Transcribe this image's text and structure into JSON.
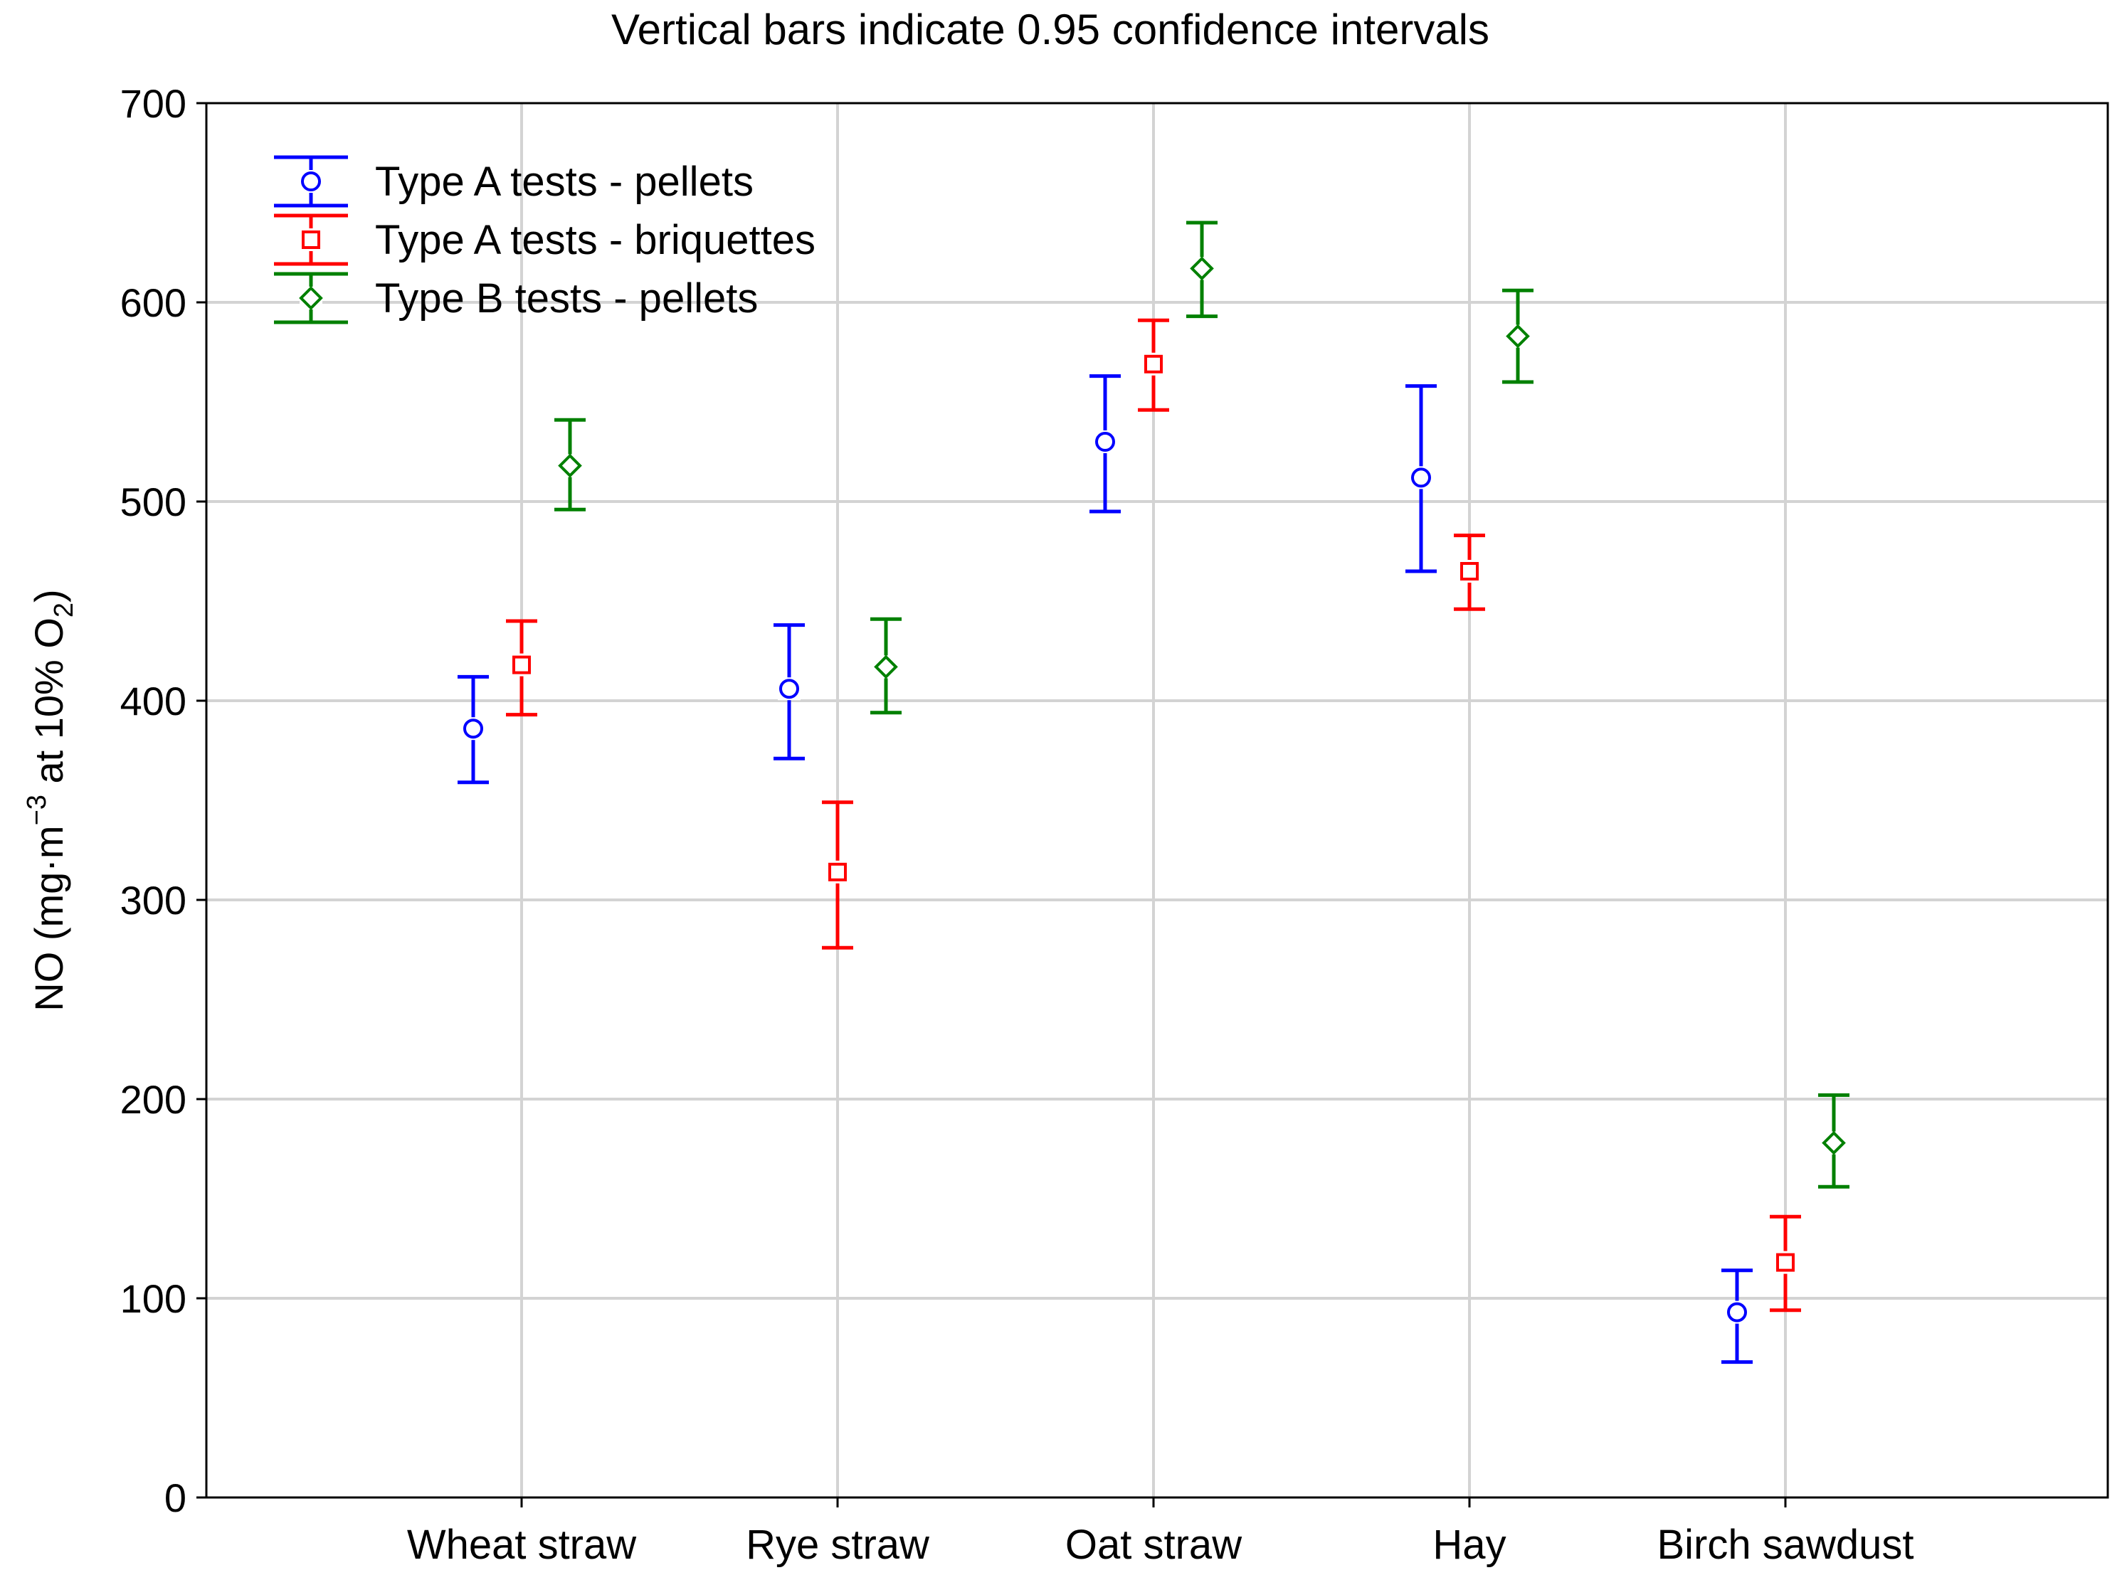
{
  "chart_data": {
    "type": "scatter",
    "title": "Vertical bars indicate 0.95 confidence intervals",
    "xlabel": "",
    "ylabel": {
      "prefix": "NO (mg·m",
      "superscript": "−3",
      "middle": " at 10% O",
      "subscript": "2",
      "suffix": ")"
    },
    "categories": [
      "Wheat straw",
      "Rye straw",
      "Oat straw",
      "Hay",
      "Birch sawdust"
    ],
    "ylim": [
      0,
      700
    ],
    "yticks": [
      0,
      100,
      200,
      300,
      400,
      500,
      600,
      700
    ],
    "ytick_labels": [
      "0",
      "100",
      "200",
      "300",
      "400",
      "500",
      "600",
      "700"
    ],
    "grid": true,
    "legend_position": "top-left",
    "series": [
      {
        "name": "Type A tests - pellets",
        "color": "#0000ff",
        "marker": "circle",
        "values": [
          386,
          406,
          530,
          512,
          93
        ],
        "ci_low": [
          359,
          371,
          495,
          465,
          68
        ],
        "ci_high": [
          412,
          438,
          563,
          558,
          114
        ]
      },
      {
        "name": "Type A tests - briquettes",
        "color": "#ff0000",
        "marker": "square",
        "values": [
          418,
          314,
          569,
          465,
          118
        ],
        "ci_low": [
          393,
          276,
          546,
          446,
          94
        ],
        "ci_high": [
          440,
          349,
          591,
          483,
          141
        ]
      },
      {
        "name": "Type B tests - pellets",
        "color": "#008000",
        "marker": "diamond",
        "values": [
          518,
          417,
          617,
          583,
          178
        ],
        "ci_low": [
          496,
          394,
          593,
          560,
          156
        ],
        "ci_high": [
          541,
          441,
          640,
          606,
          202
        ]
      }
    ]
  },
  "colors": {
    "grid": "#d3d3d3",
    "axis": "#000000",
    "background": "#ffffff"
  }
}
